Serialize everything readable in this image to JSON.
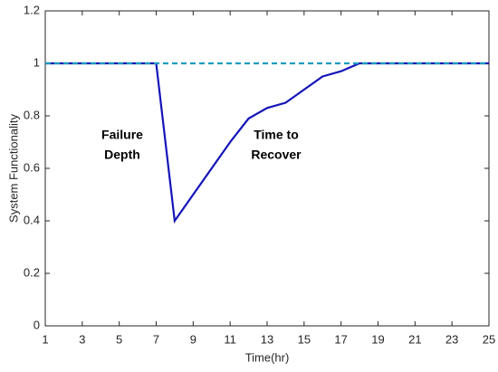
{
  "chart_data": {
    "type": "line",
    "x_label": "Time(hr)",
    "y_label": "System Functionality",
    "x": [
      1,
      2,
      3,
      4,
      5,
      6,
      7,
      8,
      9,
      10,
      11,
      12,
      13,
      14,
      15,
      16,
      17,
      18,
      19,
      20,
      21,
      22,
      23,
      24,
      25
    ],
    "series": [
      {
        "color": "#1414b8",
        "dash": false,
        "values": [
          1,
          1,
          1,
          1,
          1,
          1,
          1,
          0.4,
          0.5,
          0.6,
          0.7,
          0.79,
          0.83,
          0.85,
          0.9,
          0.95,
          0.97,
          1,
          1,
          1,
          1,
          1,
          1,
          1,
          1
        ]
      },
      {
        "color": "#1a9cc0",
        "dash": true,
        "values": [
          1,
          1,
          1,
          1,
          1,
          1,
          1,
          1,
          1,
          1,
          1,
          1,
          1,
          1,
          1,
          1,
          1,
          1,
          1,
          1,
          1,
          1,
          1,
          1,
          1
        ]
      }
    ],
    "annotations": [
      {
        "lines": [
          "Failure",
          "Depth"
        ]
      },
      {
        "lines": [
          "Time to",
          "Recover"
        ]
      }
    ],
    "xlim": [
      1,
      25
    ],
    "xticks": [
      1,
      3,
      5,
      7,
      9,
      11,
      13,
      15,
      17,
      19,
      21,
      23,
      25
    ],
    "ylim": [
      0,
      1.2
    ],
    "yticks": [
      0,
      0.2,
      0.4,
      0.6,
      0.8,
      1,
      1.2
    ]
  }
}
